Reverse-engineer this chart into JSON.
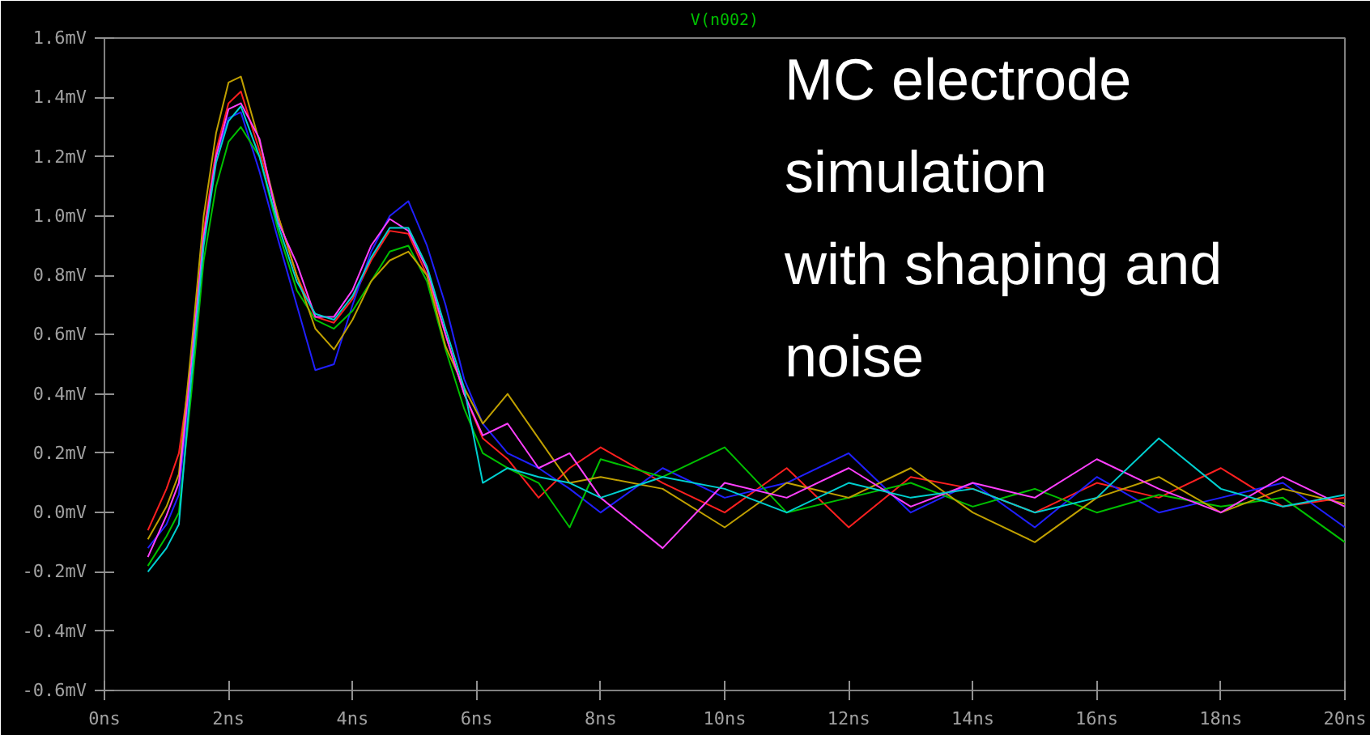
{
  "chart_data": {
    "type": "line",
    "title": "V(n002)",
    "annotations": [
      "MC electrode simulation with shaping and noise"
    ],
    "x": [
      0.7,
      1.0,
      1.2,
      1.4,
      1.6,
      1.8,
      2.0,
      2.2,
      2.5,
      2.8,
      3.1,
      3.4,
      3.7,
      4.0,
      4.3,
      4.6,
      4.9,
      5.2,
      5.5,
      5.8,
      6.1,
      6.5,
      7.0,
      7.5,
      8,
      9,
      10,
      11,
      12,
      13,
      14,
      15,
      16,
      17,
      18,
      19,
      20
    ],
    "series": [
      {
        "color": "#ff2020",
        "values": [
          -0.06,
          0.08,
          0.2,
          0.5,
          0.95,
          1.22,
          1.38,
          1.42,
          1.22,
          1.0,
          0.8,
          0.66,
          0.64,
          0.72,
          0.85,
          0.95,
          0.94,
          0.8,
          0.6,
          0.4,
          0.25,
          0.18,
          0.05,
          0.15,
          0.22,
          0.1,
          0.0,
          0.15,
          -0.05,
          0.12,
          0.08,
          0.0,
          0.1,
          0.05,
          0.15,
          0.02,
          0.05
        ]
      },
      {
        "color": "#2020ff",
        "values": [
          -0.12,
          -0.04,
          0.06,
          0.48,
          0.92,
          1.2,
          1.33,
          1.35,
          1.15,
          0.92,
          0.7,
          0.48,
          0.5,
          0.7,
          0.88,
          1.0,
          1.05,
          0.9,
          0.7,
          0.45,
          0.3,
          0.2,
          0.15,
          0.08,
          0.0,
          0.15,
          0.05,
          0.1,
          0.2,
          0.0,
          0.1,
          -0.05,
          0.12,
          0.0,
          0.05,
          0.1,
          -0.05
        ]
      },
      {
        "color": "#00c000",
        "values": [
          -0.18,
          -0.08,
          0.0,
          0.4,
          0.85,
          1.1,
          1.25,
          1.3,
          1.2,
          0.95,
          0.75,
          0.65,
          0.62,
          0.68,
          0.78,
          0.88,
          0.9,
          0.78,
          0.55,
          0.35,
          0.2,
          0.15,
          0.1,
          -0.05,
          0.18,
          0.12,
          0.22,
          0.0,
          0.05,
          0.1,
          0.02,
          0.08,
          0.0,
          0.06,
          0.02,
          0.05,
          -0.1
        ]
      },
      {
        "color": "#c0a000",
        "values": [
          -0.09,
          0.02,
          0.13,
          0.55,
          1.0,
          1.28,
          1.45,
          1.47,
          1.25,
          1.0,
          0.8,
          0.62,
          0.55,
          0.65,
          0.78,
          0.85,
          0.88,
          0.8,
          0.56,
          0.42,
          0.3,
          0.4,
          0.25,
          0.1,
          0.12,
          0.08,
          -0.05,
          0.1,
          0.05,
          0.15,
          0.0,
          -0.1,
          0.05,
          0.12,
          0.0,
          0.08,
          0.03
        ]
      },
      {
        "color": "#ff40ff",
        "values": [
          -0.15,
          -0.01,
          0.1,
          0.5,
          0.93,
          1.2,
          1.36,
          1.38,
          1.26,
          0.98,
          0.84,
          0.66,
          0.66,
          0.75,
          0.9,
          0.99,
          0.95,
          0.82,
          0.6,
          0.4,
          0.26,
          0.3,
          0.15,
          0.2,
          0.05,
          -0.12,
          0.1,
          0.05,
          0.15,
          0.02,
          0.1,
          0.05,
          0.18,
          0.08,
          0.0,
          0.12,
          0.02
        ]
      },
      {
        "color": "#00d0d0",
        "values": [
          -0.2,
          -0.12,
          -0.04,
          0.45,
          0.9,
          1.18,
          1.32,
          1.37,
          1.2,
          0.97,
          0.78,
          0.67,
          0.65,
          0.73,
          0.86,
          0.96,
          0.96,
          0.83,
          0.62,
          0.42,
          0.1,
          0.15,
          0.12,
          0.1,
          0.05,
          0.12,
          0.08,
          0.0,
          0.1,
          0.05,
          0.08,
          0.0,
          0.05,
          0.25,
          0.08,
          0.02,
          0.06
        ]
      }
    ],
    "xlim": [
      0,
      20
    ],
    "ylim": [
      -0.6,
      1.6
    ],
    "xticks": [
      {
        "value": 0,
        "label": "0ns"
      },
      {
        "value": 2,
        "label": "2ns"
      },
      {
        "value": 4,
        "label": "4ns"
      },
      {
        "value": 6,
        "label": "6ns"
      },
      {
        "value": 8,
        "label": "8ns"
      },
      {
        "value": 10,
        "label": "10ns"
      },
      {
        "value": 12,
        "label": "12ns"
      },
      {
        "value": 14,
        "label": "14ns"
      },
      {
        "value": 16,
        "label": "16ns"
      },
      {
        "value": 18,
        "label": "18ns"
      },
      {
        "value": 20,
        "label": "20ns"
      }
    ],
    "yticks": [
      {
        "value": -0.6,
        "label": "-0.6mV"
      },
      {
        "value": -0.4,
        "label": "-0.4mV"
      },
      {
        "value": -0.2,
        "label": "-0.2mV"
      },
      {
        "value": 0,
        "label": "0.0mV"
      },
      {
        "value": 0.2,
        "label": "0.2mV"
      },
      {
        "value": 0.4,
        "label": "0.4mV"
      },
      {
        "value": 0.6,
        "label": "0.6mV"
      },
      {
        "value": 0.8,
        "label": "0.8mV"
      },
      {
        "value": 1.0,
        "label": "1.0mV"
      },
      {
        "value": 1.2,
        "label": "1.2mV"
      },
      {
        "value": 1.4,
        "label": "1.4mV"
      },
      {
        "value": 1.6,
        "label": "1.6mV"
      }
    ],
    "grid": false
  }
}
